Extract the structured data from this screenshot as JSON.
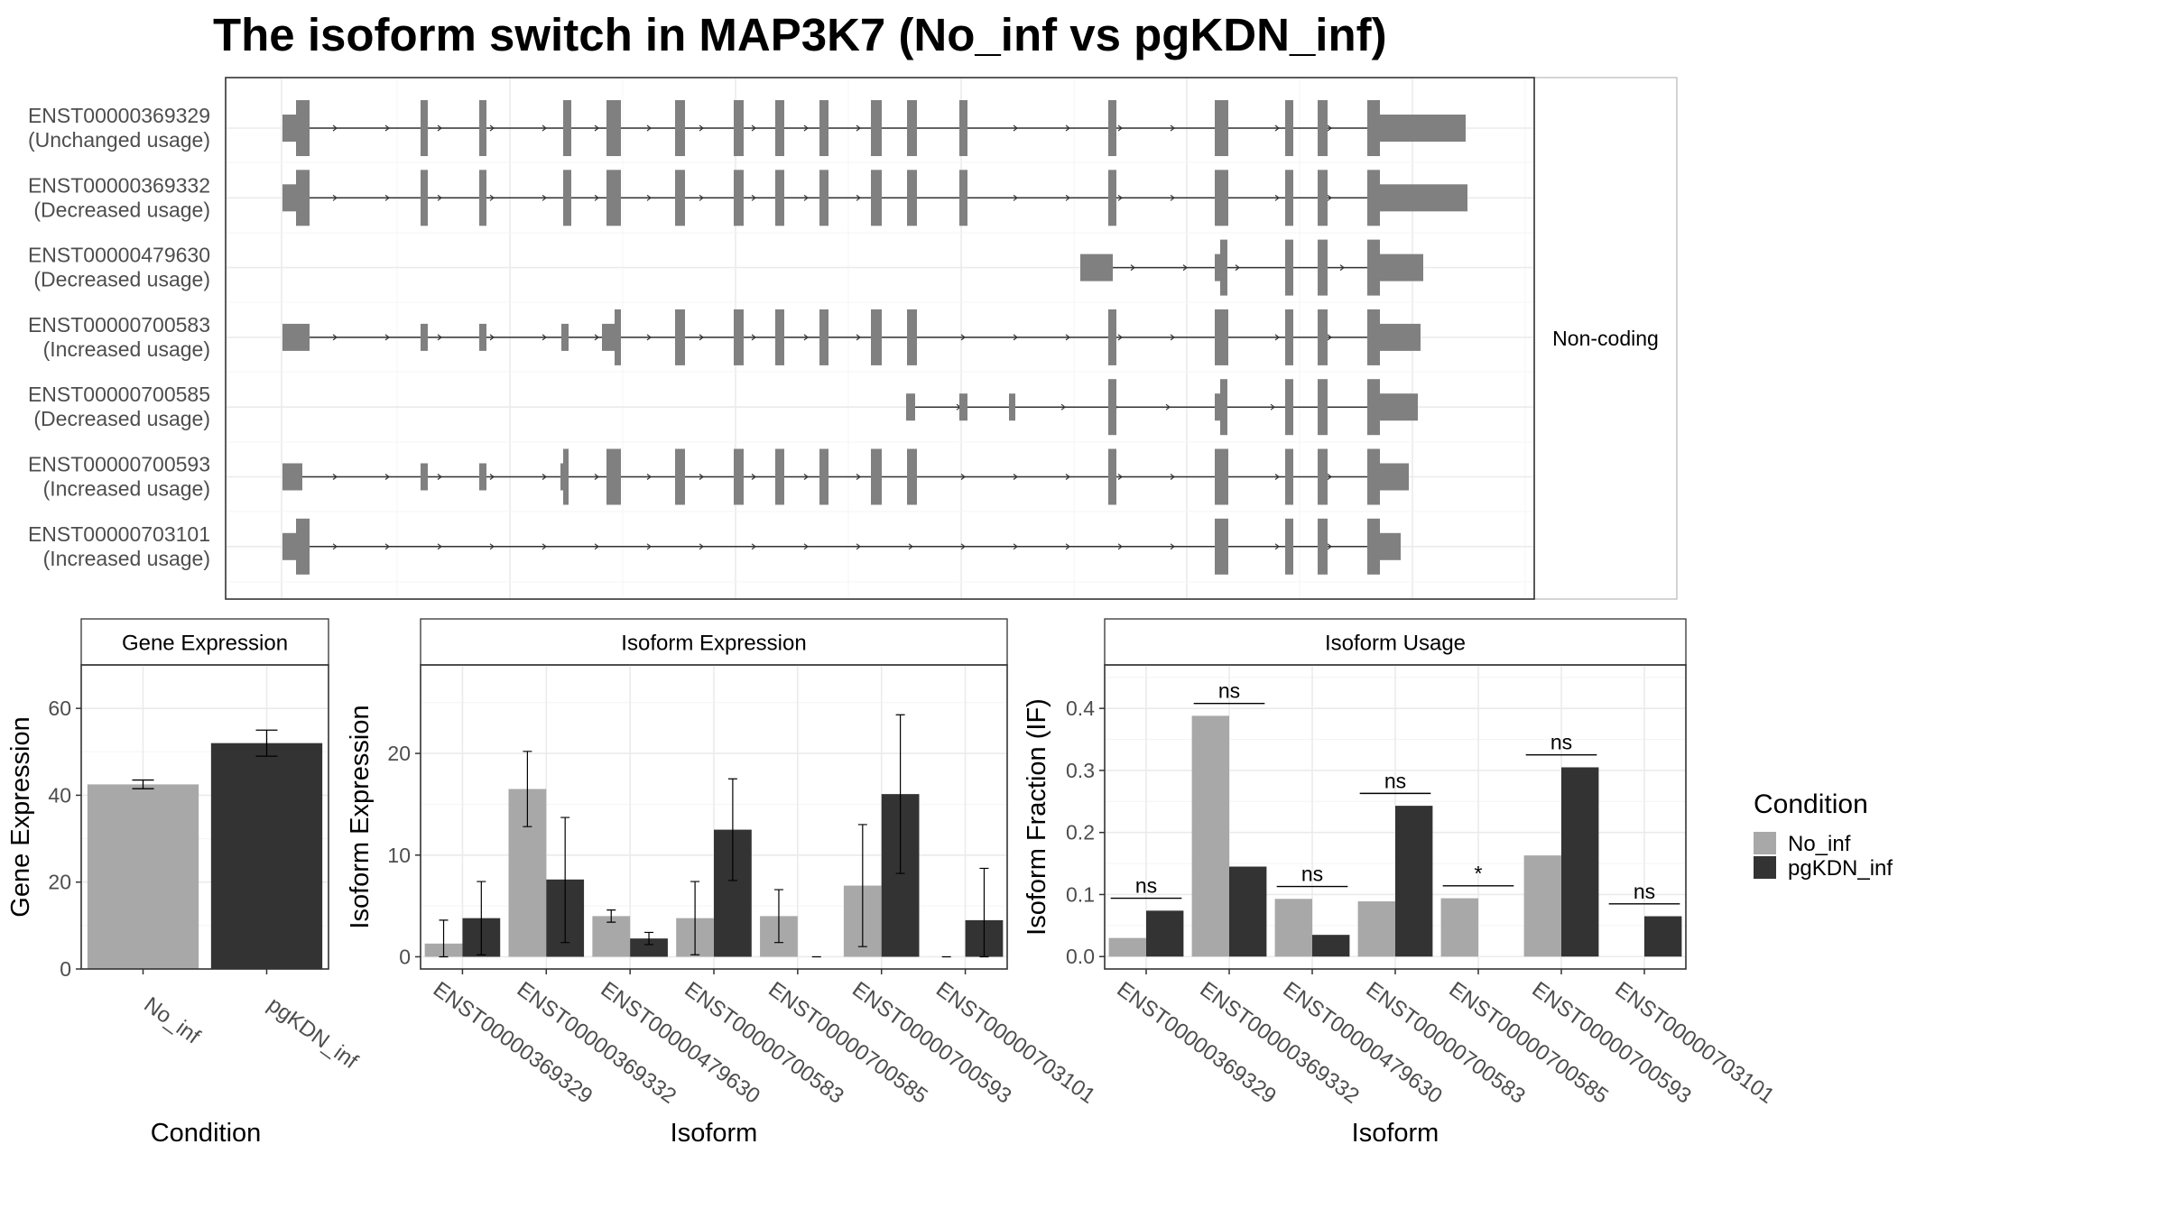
{
  "title": "The isoform switch in MAP3K7 (No_inf vs pgKDN_inf)",
  "colors": {
    "no_inf": "#a8a8a8",
    "pgkdn_inf": "#333333",
    "exon": "#808080"
  },
  "structure": {
    "facet_label": "Non-coding",
    "isoforms": [
      {
        "id": "ENST00000369329",
        "usage": "(Unchanged usage)"
      },
      {
        "id": "ENST00000369332",
        "usage": "(Decreased usage)"
      },
      {
        "id": "ENST00000479630",
        "usage": "(Decreased usage)"
      },
      {
        "id": "ENST00000700583",
        "usage": "(Increased usage)"
      },
      {
        "id": "ENST00000700585",
        "usage": "(Decreased usage)"
      },
      {
        "id": "ENST00000700593",
        "usage": "(Increased usage)"
      },
      {
        "id": "ENST00000703101",
        "usage": "(Increased usage)"
      }
    ]
  },
  "legend": {
    "title": "Condition",
    "items": [
      "No_inf",
      "pgKDN_inf"
    ]
  },
  "chart_data": [
    {
      "type": "bar",
      "title": "Gene Expression",
      "xlabel": "Condition",
      "ylabel": "Gene Expression",
      "categories": [
        "No_inf",
        "pgKDN_inf"
      ],
      "values": [
        42.5,
        52.0
      ],
      "error_low": [
        41.5,
        49.0
      ],
      "error_high": [
        43.5,
        55.0
      ],
      "ylim": [
        0,
        70
      ],
      "yticks": [
        0,
        20,
        40,
        60
      ]
    },
    {
      "type": "bar",
      "title": "Isoform Expression",
      "xlabel": "Isoform",
      "ylabel": "Isoform Expression",
      "categories": [
        "ENST00000369329",
        "ENST00000369332",
        "ENST00000479630",
        "ENST00000700583",
        "ENST00000700585",
        "ENST00000700593",
        "ENST00000703101"
      ],
      "series": [
        {
          "name": "No_inf",
          "values": [
            1.3,
            16.5,
            4.0,
            3.8,
            4.0,
            7.0,
            0.0
          ],
          "error_low": [
            0.0,
            12.8,
            3.4,
            0.2,
            1.4,
            1.0,
            0.0
          ],
          "error_high": [
            3.6,
            20.2,
            4.6,
            7.4,
            6.6,
            13.0,
            0.0
          ]
        },
        {
          "name": "pgKDN_inf",
          "values": [
            3.8,
            7.6,
            1.8,
            12.5,
            0.0,
            16.0,
            3.6
          ],
          "error_low": [
            0.2,
            1.4,
            1.2,
            7.5,
            0.0,
            8.2,
            0.0
          ],
          "error_high": [
            7.4,
            13.7,
            2.4,
            17.5,
            0.0,
            23.8,
            8.7
          ]
        }
      ],
      "ylim": [
        -1.2,
        28.7
      ],
      "yticks": [
        0,
        10,
        20
      ]
    },
    {
      "type": "bar",
      "title": "Isoform Usage",
      "xlabel": "Isoform",
      "ylabel": "Isoform Fraction (IF)",
      "categories": [
        "ENST00000369329",
        "ENST00000369332",
        "ENST00000479630",
        "ENST00000700583",
        "ENST00000700585",
        "ENST00000700593",
        "ENST00000703101"
      ],
      "series": [
        {
          "name": "No_inf",
          "values": [
            0.03,
            0.388,
            0.093,
            0.089,
            0.094,
            0.163,
            0.0
          ]
        },
        {
          "name": "pgKDN_inf",
          "values": [
            0.074,
            0.145,
            0.035,
            0.243,
            0.0,
            0.305,
            0.065
          ]
        }
      ],
      "significance": [
        "ns",
        "ns",
        "ns",
        "ns",
        "*",
        "ns",
        "ns"
      ],
      "ylim": [
        -0.02,
        0.47
      ],
      "yticks": [
        0.0,
        0.1,
        0.2,
        0.3,
        0.4
      ]
    }
  ]
}
